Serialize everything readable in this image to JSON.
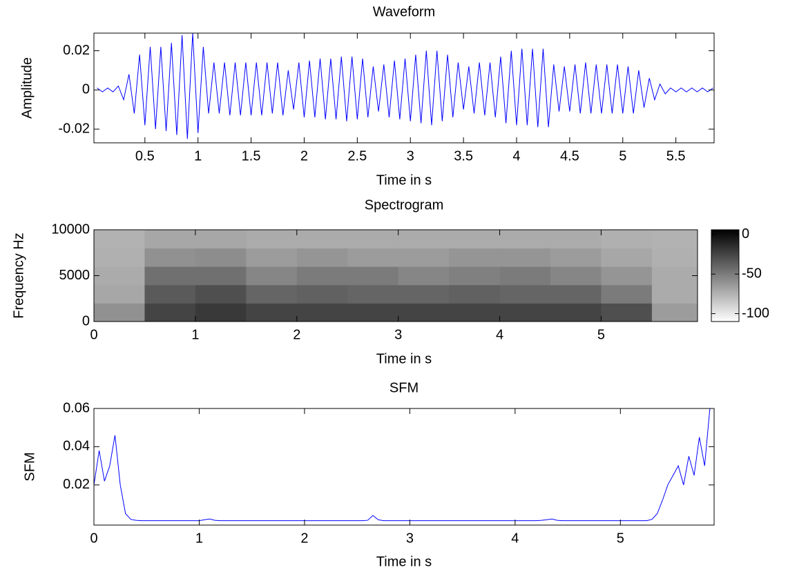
{
  "chart_data": [
    {
      "type": "line",
      "title": "Waveform",
      "xlabel": "Time in s",
      "ylabel": "Amplitude",
      "xlim": [
        0.02,
        5.86
      ],
      "ylim": [
        -0.027,
        0.029
      ],
      "xticks": [
        0.5,
        1,
        1.5,
        2,
        2.5,
        3,
        3.5,
        4,
        4.5,
        5,
        5.5
      ],
      "yticks": [
        -0.02,
        0,
        0.02
      ],
      "series": [
        {
          "color": "#0000ff",
          "x": [
            0.05,
            0.1,
            0.15,
            0.2,
            0.25,
            0.3,
            0.35,
            0.4,
            0.45,
            0.5,
            0.55,
            0.6,
            0.65,
            0.7,
            0.75,
            0.8,
            0.85,
            0.9,
            0.95,
            1,
            1.05,
            1.1,
            1.15,
            1.2,
            1.25,
            1.3,
            1.35,
            1.4,
            1.45,
            1.5,
            1.55,
            1.6,
            1.65,
            1.7,
            1.75,
            1.8,
            1.85,
            1.9,
            1.95,
            2,
            2.05,
            2.1,
            2.15,
            2.2,
            2.25,
            2.3,
            2.35,
            2.4,
            2.45,
            2.5,
            2.55,
            2.6,
            2.65,
            2.7,
            2.75,
            2.8,
            2.85,
            2.9,
            2.95,
            3,
            3.05,
            3.1,
            3.15,
            3.2,
            3.25,
            3.3,
            3.35,
            3.4,
            3.45,
            3.5,
            3.55,
            3.6,
            3.65,
            3.7,
            3.75,
            3.8,
            3.85,
            3.9,
            3.95,
            4,
            4.05,
            4.1,
            4.15,
            4.2,
            4.25,
            4.3,
            4.35,
            4.4,
            4.45,
            4.5,
            4.55,
            4.6,
            4.65,
            4.7,
            4.75,
            4.8,
            4.85,
            4.9,
            4.95,
            5,
            5.05,
            5.1,
            5.15,
            5.2,
            5.25,
            5.3,
            5.35,
            5.4,
            5.45,
            5.5,
            5.55,
            5.6,
            5.65,
            5.7,
            5.75,
            5.8,
            5.85
          ],
          "values": [
            0.001,
            -0.001,
            0.001,
            -0.001,
            0.002,
            -0.005,
            0.008,
            -0.012,
            0.018,
            -0.018,
            0.022,
            -0.02,
            0.022,
            -0.021,
            0.024,
            -0.023,
            0.028,
            -0.025,
            0.029,
            -0.022,
            0.022,
            -0.012,
            0.014,
            -0.012,
            0.014,
            -0.013,
            0.014,
            -0.013,
            0.014,
            -0.013,
            0.014,
            -0.013,
            0.014,
            -0.012,
            0.014,
            -0.013,
            0.01,
            -0.01,
            0.014,
            -0.014,
            0.015,
            -0.014,
            0.016,
            -0.015,
            0.016,
            -0.015,
            0.017,
            -0.016,
            0.017,
            -0.015,
            0.016,
            -0.014,
            0.012,
            -0.011,
            0.013,
            -0.014,
            0.015,
            -0.015,
            0.016,
            -0.016,
            0.018,
            -0.017,
            0.02,
            -0.018,
            0.02,
            -0.016,
            0.018,
            -0.014,
            0.014,
            -0.01,
            0.012,
            -0.012,
            0.014,
            -0.013,
            0.014,
            -0.014,
            0.017,
            -0.017,
            0.02,
            -0.018,
            0.021,
            -0.018,
            0.021,
            -0.019,
            0.021,
            -0.019,
            0.013,
            -0.011,
            0.012,
            -0.011,
            0.013,
            -0.012,
            0.014,
            -0.012,
            0.013,
            -0.012,
            0.013,
            -0.012,
            0.013,
            -0.012,
            0.012,
            -0.012,
            0.01,
            -0.009,
            0.006,
            -0.005,
            0.003,
            -0.002,
            0.001,
            -0.001,
            0.001,
            -0.001,
            0.001,
            -0.001,
            0.001,
            -0.001,
            0.001
          ]
        }
      ]
    },
    {
      "type": "heatmap",
      "title": "Spectrogram",
      "xlabel": "Time in s",
      "ylabel": "Frequency Hz",
      "xlim": [
        0,
        5.95
      ],
      "ylim": [
        0,
        10000
      ],
      "xticks": [
        0,
        1,
        2,
        3,
        4,
        5
      ],
      "yticks": [
        0,
        5000,
        10000
      ],
      "colormap": "gray_r",
      "clim": [
        -110,
        6
      ],
      "cticks": [
        -100,
        -50,
        0
      ],
      "xbins": [
        0,
        0.5,
        1,
        1.5,
        2,
        2.5,
        3,
        3.5,
        4,
        4.5,
        5,
        5.5,
        6
      ],
      "ybins": [
        0,
        2000,
        4000,
        6000,
        8000,
        10000
      ],
      "z": [
        [
          -60,
          -25,
          -20,
          -25,
          -25,
          -25,
          -25,
          -25,
          -25,
          -25,
          -30,
          -65
        ],
        [
          -70,
          -35,
          -30,
          -40,
          -38,
          -40,
          -40,
          -38,
          -40,
          -40,
          -50,
          -72
        ],
        [
          -72,
          -45,
          -45,
          -55,
          -50,
          -50,
          -55,
          -52,
          -50,
          -55,
          -62,
          -72
        ],
        [
          -74,
          -60,
          -58,
          -65,
          -62,
          -65,
          -65,
          -62,
          -62,
          -65,
          -70,
          -74
        ],
        [
          -75,
          -70,
          -70,
          -72,
          -72,
          -72,
          -72,
          -72,
          -72,
          -72,
          -74,
          -75
        ]
      ]
    },
    {
      "type": "line",
      "title": "SFM",
      "xlabel": "Time in s",
      "ylabel": "SFM",
      "xlim": [
        0,
        5.89
      ],
      "ylim": [
        -0.001,
        0.06
      ],
      "xticks": [
        0,
        1,
        2,
        3,
        4,
        5
      ],
      "yticks": [
        0.02,
        0.04,
        0.06
      ],
      "series": [
        {
          "color": "#0000ff",
          "x": [
            0,
            0.05,
            0.1,
            0.15,
            0.2,
            0.25,
            0.3,
            0.35,
            0.4,
            0.45,
            0.5,
            0.55,
            0.6,
            0.65,
            0.7,
            0.75,
            0.8,
            0.85,
            0.9,
            0.95,
            1,
            1.05,
            1.1,
            1.15,
            1.2,
            1.25,
            1.3,
            1.35,
            1.4,
            1.45,
            1.5,
            1.55,
            1.6,
            1.65,
            1.7,
            1.75,
            1.8,
            1.85,
            1.9,
            1.95,
            2,
            2.05,
            2.1,
            2.15,
            2.2,
            2.25,
            2.3,
            2.35,
            2.4,
            2.45,
            2.5,
            2.55,
            2.6,
            2.65,
            2.7,
            2.75,
            2.8,
            2.85,
            2.9,
            2.95,
            3,
            3.05,
            3.1,
            3.15,
            3.2,
            3.25,
            3.3,
            3.35,
            3.4,
            3.45,
            3.5,
            3.55,
            3.6,
            3.65,
            3.7,
            3.75,
            3.8,
            3.85,
            3.9,
            3.95,
            4,
            4.05,
            4.1,
            4.15,
            4.2,
            4.25,
            4.3,
            4.35,
            4.4,
            4.45,
            4.5,
            4.55,
            4.6,
            4.65,
            4.7,
            4.75,
            4.8,
            4.85,
            4.9,
            4.95,
            5,
            5.05,
            5.1,
            5.15,
            5.2,
            5.25,
            5.3,
            5.35,
            5.4,
            5.45,
            5.5,
            5.55,
            5.6,
            5.65,
            5.7,
            5.75,
            5.8,
            5.85
          ],
          "values": [
            0.02,
            0.038,
            0.022,
            0.03,
            0.046,
            0.02,
            0.005,
            0.002,
            0.0015,
            0.0013,
            0.0013,
            0.0013,
            0.0013,
            0.0013,
            0.0013,
            0.0013,
            0.0013,
            0.0013,
            0.0013,
            0.0013,
            0.0013,
            0.0018,
            0.0022,
            0.0015,
            0.0013,
            0.0013,
            0.0013,
            0.0013,
            0.0013,
            0.0013,
            0.0013,
            0.0013,
            0.0013,
            0.0013,
            0.0013,
            0.0013,
            0.0013,
            0.0013,
            0.0013,
            0.0013,
            0.0013,
            0.0013,
            0.0013,
            0.0013,
            0.0013,
            0.0013,
            0.0013,
            0.0013,
            0.0013,
            0.0013,
            0.0013,
            0.0013,
            0.0015,
            0.004,
            0.0018,
            0.0013,
            0.0013,
            0.0013,
            0.0013,
            0.0013,
            0.0013,
            0.0013,
            0.0013,
            0.0013,
            0.0013,
            0.0013,
            0.0013,
            0.0013,
            0.0013,
            0.0013,
            0.0013,
            0.0013,
            0.0013,
            0.0013,
            0.0013,
            0.0013,
            0.0013,
            0.0013,
            0.0013,
            0.0013,
            0.0013,
            0.0013,
            0.0013,
            0.0013,
            0.0013,
            0.0015,
            0.0018,
            0.0022,
            0.0015,
            0.0013,
            0.0013,
            0.0013,
            0.0013,
            0.0013,
            0.0013,
            0.0013,
            0.0013,
            0.0013,
            0.0013,
            0.0013,
            0.0013,
            0.0013,
            0.0013,
            0.0013,
            0.0013,
            0.0013,
            0.002,
            0.005,
            0.012,
            0.02,
            0.025,
            0.03,
            0.02,
            0.035,
            0.025,
            0.045,
            0.03,
            0.06
          ]
        }
      ]
    }
  ]
}
